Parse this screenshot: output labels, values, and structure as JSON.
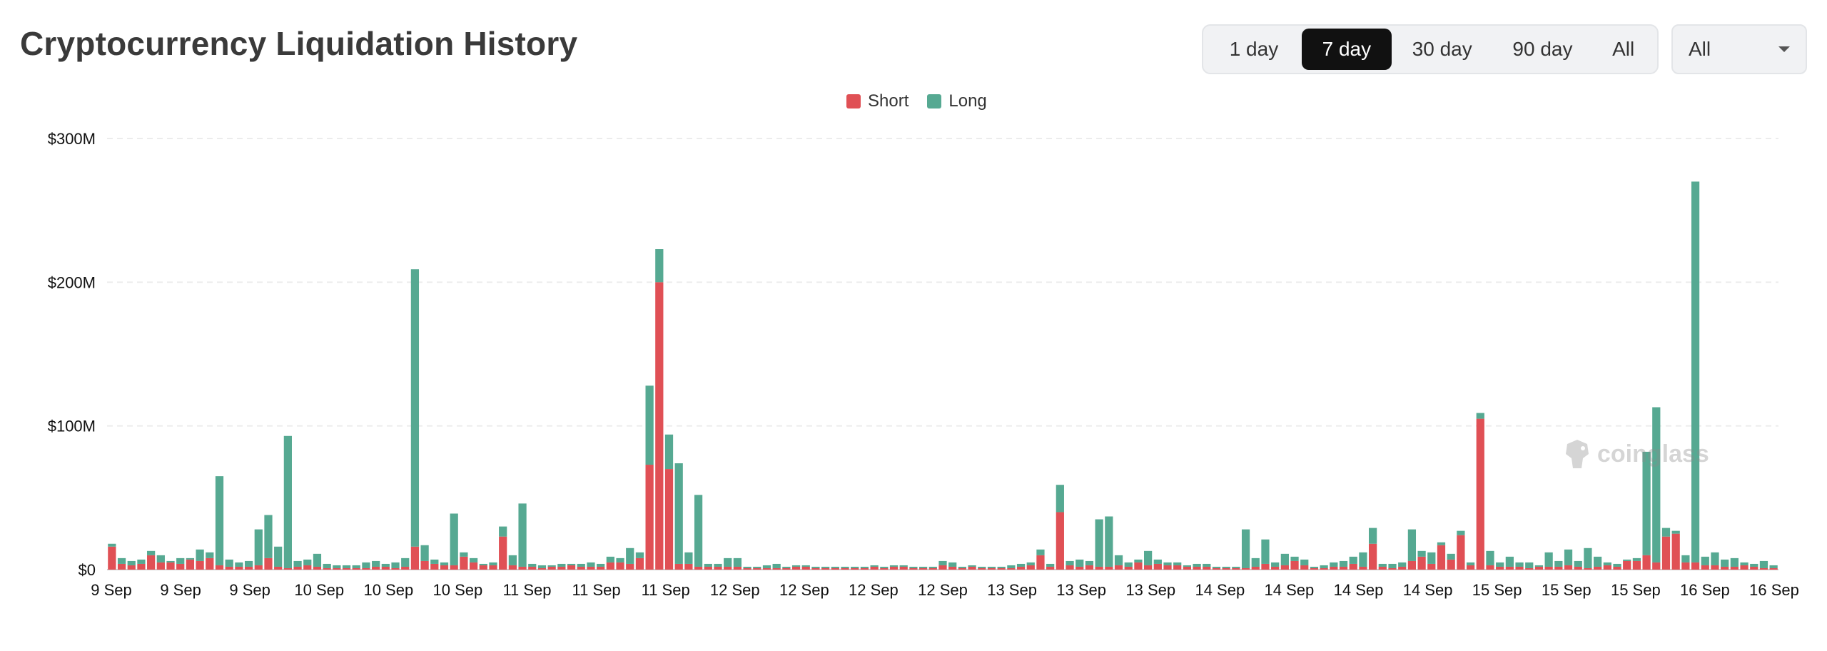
{
  "header": {
    "title": "Cryptocurrency Liquidation History"
  },
  "range_options": [
    {
      "label": "1 day",
      "active": false
    },
    {
      "label": "7 day",
      "active": true
    },
    {
      "label": "30 day",
      "active": false
    },
    {
      "label": "90 day",
      "active": false
    },
    {
      "label": "All",
      "active": false
    }
  ],
  "coin_select": {
    "value": "All",
    "icon": "chevron-down-icon"
  },
  "colors": {
    "short": "#e05055",
    "long": "#56a992",
    "grid": "#ececec"
  },
  "watermark": {
    "text": "coinglass",
    "icon": "coinglass-logo-icon"
  },
  "chart_data": {
    "type": "bar",
    "stacked": true,
    "title": "",
    "xlabel": "",
    "ylabel": "",
    "ylim": [
      0,
      300
    ],
    "y_unit": "M USD",
    "y_ticks": [
      {
        "value": 0,
        "label": "$0"
      },
      {
        "value": 100,
        "label": "$100M"
      },
      {
        "value": 200,
        "label": "$200M"
      },
      {
        "value": 300,
        "label": "$300M"
      }
    ],
    "x_tick_labels": [
      "9 Sep",
      "9 Sep",
      "9 Sep",
      "10 Sep",
      "10 Sep",
      "10 Sep",
      "11 Sep",
      "11 Sep",
      "11 Sep",
      "12 Sep",
      "12 Sep",
      "12 Sep",
      "12 Sep",
      "13 Sep",
      "13 Sep",
      "13 Sep",
      "14 Sep",
      "14 Sep",
      "14 Sep",
      "14 Sep",
      "15 Sep",
      "15 Sep",
      "15 Sep",
      "16 Sep",
      "16 Sep"
    ],
    "legend": {
      "position": "top-center",
      "entries": [
        "Short",
        "Long"
      ]
    },
    "grid": true,
    "series": [
      {
        "name": "Short",
        "values": [
          16,
          4,
          3,
          4,
          10,
          5,
          5,
          4,
          7,
          6,
          8,
          3,
          2,
          2,
          2,
          3,
          8,
          2,
          1,
          2,
          3,
          2,
          1,
          1,
          1,
          1,
          1,
          2,
          2,
          1,
          2,
          16,
          6,
          4,
          3,
          3,
          9,
          5,
          3,
          3,
          23,
          3,
          2,
          2,
          1,
          2,
          2,
          3,
          2,
          2,
          2,
          5,
          5,
          4,
          8,
          73,
          200,
          70,
          4,
          4,
          2,
          2,
          2,
          2,
          2,
          1,
          1,
          1,
          1,
          1,
          2,
          2,
          1,
          1,
          1,
          1,
          1,
          1,
          2,
          1,
          2,
          2,
          1,
          1,
          1,
          3,
          2,
          1,
          2,
          1,
          1,
          1,
          1,
          2,
          3,
          10,
          2,
          40,
          3,
          2,
          3,
          2,
          2,
          3,
          2,
          5,
          3,
          4,
          3,
          3,
          2,
          2,
          2,
          1,
          1,
          1,
          1,
          2,
          4,
          2,
          3,
          6,
          3,
          1,
          1,
          2,
          2,
          4,
          2,
          18,
          2,
          1,
          2,
          6,
          9,
          4,
          17,
          7,
          24,
          3,
          105,
          3,
          2,
          2,
          2,
          1,
          2,
          2,
          2,
          3,
          2,
          1,
          2,
          3,
          2,
          6,
          6,
          10,
          5,
          23,
          25,
          5,
          5,
          3,
          3,
          2,
          2,
          3,
          2,
          1,
          1
        ],
        "rendered_as": "lower stacked segment"
      },
      {
        "name": "Long",
        "values": [
          2,
          4,
          3,
          3,
          3,
          5,
          1,
          4,
          1,
          8,
          4,
          62,
          5,
          3,
          4,
          25,
          30,
          14,
          92,
          4,
          4,
          9,
          3,
          2,
          2,
          2,
          4,
          4,
          2,
          4,
          6,
          193,
          11,
          3,
          2,
          36,
          3,
          3,
          1,
          2,
          7,
          7,
          44,
          2,
          2,
          1,
          2,
          1,
          2,
          3,
          2,
          4,
          3,
          11,
          4,
          55,
          23,
          24,
          70,
          8,
          50,
          2,
          2,
          6,
          6,
          1,
          1,
          2,
          3,
          1,
          1,
          1,
          1,
          1,
          1,
          1,
          1,
          1,
          1,
          1,
          1,
          1,
          1,
          1,
          1,
          3,
          3,
          1,
          1,
          1,
          1,
          1,
          2,
          2,
          2,
          4,
          2,
          19,
          3,
          5,
          3,
          33,
          35,
          7,
          3,
          2,
          10,
          3,
          2,
          2,
          1,
          2,
          2,
          1,
          1,
          1,
          27,
          6,
          17,
          3,
          8,
          3,
          4,
          1,
          2,
          3,
          4,
          5,
          10,
          11,
          2,
          3,
          3,
          22,
          4,
          8,
          2,
          4,
          3,
          2,
          4,
          10,
          3,
          7,
          3,
          4,
          1,
          10,
          4,
          11,
          4,
          14,
          7,
          2,
          2,
          1,
          2,
          72,
          108,
          6,
          2,
          5,
          265,
          6,
          9,
          5,
          6,
          2,
          2,
          5,
          2,
          2,
          1
        ],
        "rendered_as": "upper stacked segment"
      }
    ]
  }
}
